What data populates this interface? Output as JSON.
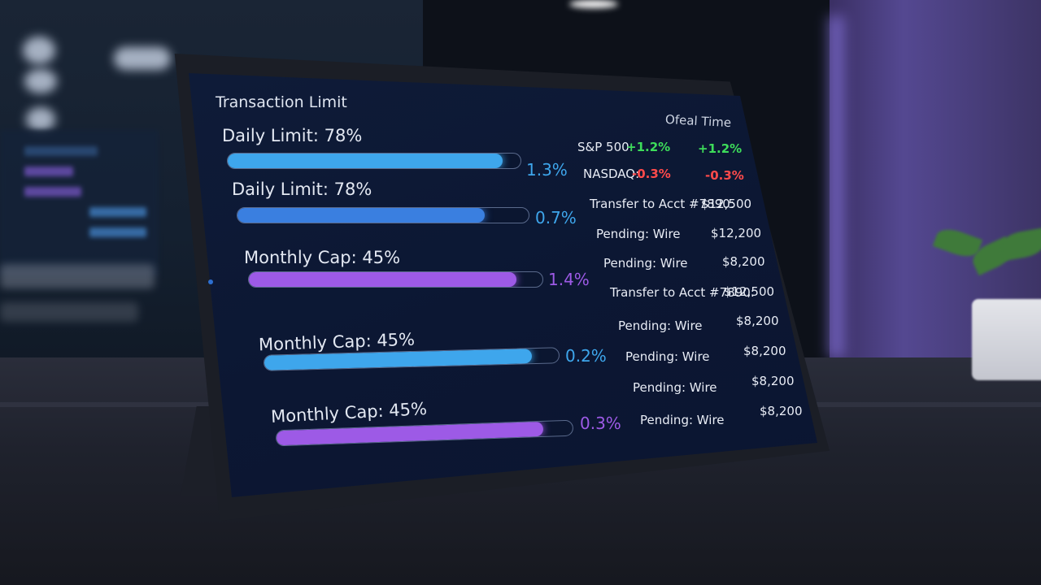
{
  "screen": {
    "title": "Transaction Limit",
    "right_header": "Ofeal Time"
  },
  "limits": [
    {
      "label": "Daily Limit: 78%",
      "fill": 0.94,
      "change": "1.3%",
      "color": "#3ea6ec",
      "change_color": "#3ea6ec"
    },
    {
      "label": "Daily Limit: 78%",
      "fill": 0.85,
      "change": "0.7%",
      "color": "#3a7fe0",
      "change_color": "#3ea6ec"
    },
    {
      "label": "Monthly Cap: 45%",
      "fill": 0.91,
      "change": "1.4%",
      "color": "#9d5ae6",
      "change_color": "#9d5ae6"
    },
    {
      "label": "Monthly Cap: 45%",
      "fill": 0.91,
      "change": "0.2%",
      "color": "#3ea6ec",
      "change_color": "#3ea6ec"
    },
    {
      "label": "Monthly Cap: 45%",
      "fill": 0.9,
      "change": "0.3%",
      "color": "#9d5ae6",
      "change_color": "#9d5ae6"
    }
  ],
  "tickers": [
    {
      "name": "S&P 500:",
      "value": "+1.2%",
      "value2": "+1.2%",
      "color": "#3ddc5a"
    },
    {
      "name": "NASDAQ:",
      "value": "-0.3%",
      "value2": "-0.3%",
      "color": "#ff4b4b"
    }
  ],
  "transactions": [
    {
      "label": "Transfer to Acct #7890:",
      "amount": "$12,500"
    },
    {
      "label": "Pending: Wire",
      "amount": "$12,200"
    },
    {
      "label": "Pending: Wire",
      "amount": "$8,200"
    },
    {
      "label": "Transfer to Acct #7890:",
      "amount": "$12,500"
    },
    {
      "label": "Pending: Wire",
      "amount": "$8,200"
    },
    {
      "label": "Pending: Wire",
      "amount": "$8,200"
    },
    {
      "label": "Pending: Wire",
      "amount": "$8,200"
    },
    {
      "label": "Pending: Wire",
      "amount": "$8,200"
    }
  ]
}
